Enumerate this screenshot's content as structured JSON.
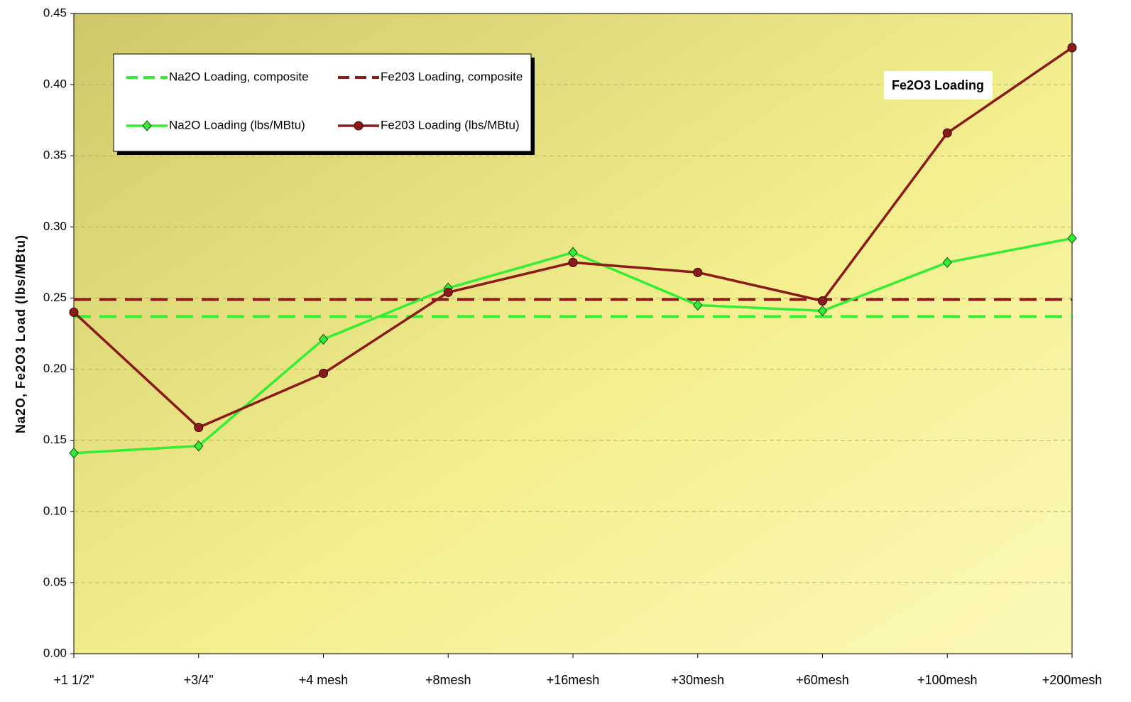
{
  "chart_data": {
    "type": "line",
    "y_label": "Na2O, Fe2O3 Load (lbs/MBtu)",
    "annotation": "Fe2O3 Loading",
    "categories": [
      "+1 1/2\"",
      "+3/4\"",
      "+4 mesh",
      "+8mesh",
      "+16mesh",
      "+30mesh",
      "+60mesh",
      "+100mesh",
      "+200mesh"
    ],
    "series": [
      {
        "name": "Na2O Loading, composite",
        "color": "#33ee33",
        "dash": true,
        "marker": "none",
        "values": [
          0.237,
          0.237,
          0.237,
          0.237,
          0.237,
          0.237,
          0.237,
          0.237,
          0.237
        ]
      },
      {
        "name": "Fe203 Loading, composite",
        "color": "#8b1a1a",
        "dash": true,
        "marker": "none",
        "values": [
          0.249,
          0.249,
          0.249,
          0.249,
          0.249,
          0.249,
          0.249,
          0.249,
          0.249
        ]
      },
      {
        "name": "Na2O Loading (lbs/MBtu)",
        "color": "#33ee33",
        "dash": false,
        "marker": "diamond",
        "values": [
          0.141,
          0.146,
          0.221,
          0.257,
          0.282,
          0.245,
          0.241,
          0.275,
          0.292
        ]
      },
      {
        "name": "Fe203 Loading (lbs/MBtu)",
        "color": "#8b1a1a",
        "dash": false,
        "marker": "circle",
        "values": [
          0.24,
          0.159,
          0.197,
          0.254,
          0.275,
          0.268,
          0.248,
          0.366,
          0.426
        ]
      }
    ],
    "ylim": [
      0,
      0.45
    ],
    "yticks": [
      {
        "value": 0,
        "label": "0.00"
      },
      {
        "value": 0.05,
        "label": "0.05"
      },
      {
        "value": 0.1,
        "label": "0.10"
      },
      {
        "value": 0.15,
        "label": "0.15"
      },
      {
        "value": 0.2,
        "label": "0.20"
      },
      {
        "value": 0.25,
        "label": "0.25"
      },
      {
        "value": 0.3,
        "label": "0.30"
      },
      {
        "value": 0.35,
        "label": "0.35"
      },
      {
        "value": 0.4,
        "label": "0.40"
      },
      {
        "value": 0.45,
        "label": "0.45"
      }
    ],
    "grid": true
  }
}
